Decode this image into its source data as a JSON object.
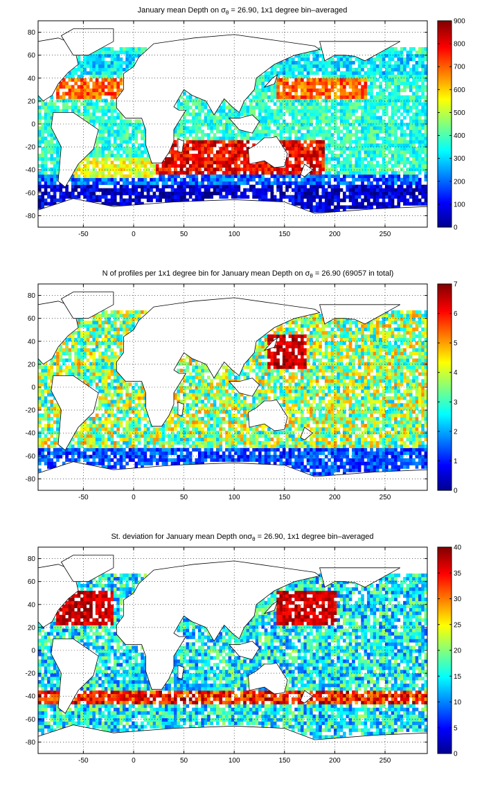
{
  "chart_data": [
    {
      "type": "heatmap",
      "title_main": "January mean Depth on σ",
      "title_sub": "θ",
      "title_rest": " = 26.90, 1x1 degree bin–averaged",
      "xticks": [
        "-50",
        "0",
        "50",
        "100",
        "150",
        "200",
        "250"
      ],
      "xtick_values": [
        -50,
        0,
        50,
        100,
        150,
        200,
        250
      ],
      "yticks": [
        "80",
        "60",
        "40",
        "20",
        "0",
        "-20",
        "-40",
        "-60",
        "-80"
      ],
      "ytick_values": [
        80,
        60,
        40,
        20,
        0,
        -20,
        -40,
        -60,
        -80
      ],
      "xlim": [
        -95,
        292
      ],
      "ylim": [
        -90,
        90
      ],
      "colorbar_ticks": [
        "900",
        "800",
        "700",
        "600",
        "500",
        "400",
        "300",
        "200",
        "100",
        "0"
      ],
      "colorbar_range": [
        0,
        900
      ],
      "colormap": "jet",
      "grid": true
    },
    {
      "type": "heatmap",
      "title_main": "N of profiles per 1x1 degree bin for January mean Depth on σ",
      "title_sub": "θ",
      "title_rest": " = 26.90 (69057 in total)",
      "xticks": [
        "-50",
        "0",
        "50",
        "100",
        "150",
        "200",
        "250"
      ],
      "xtick_values": [
        -50,
        0,
        50,
        100,
        150,
        200,
        250
      ],
      "yticks": [
        "80",
        "60",
        "40",
        "20",
        "0",
        "-20",
        "-40",
        "-60",
        "-80"
      ],
      "ytick_values": [
        80,
        60,
        40,
        20,
        0,
        -20,
        -40,
        -60,
        -80
      ],
      "xlim": [
        -95,
        292
      ],
      "ylim": [
        -90,
        90
      ],
      "colorbar_ticks": [
        "7",
        "6",
        "5",
        "4",
        "3",
        "2",
        "1",
        "0"
      ],
      "colorbar_range": [
        0,
        7
      ],
      "colormap": "jet",
      "grid": true
    },
    {
      "type": "heatmap",
      "title_main": "St. deviation for January mean Depth onσ",
      "title_sub": "θ",
      "title_rest": " = 26.90, 1x1 degree bin–averaged",
      "xticks": [
        "-50",
        "0",
        "50",
        "100",
        "150",
        "200",
        "250"
      ],
      "xtick_values": [
        -50,
        0,
        50,
        100,
        150,
        200,
        250
      ],
      "yticks": [
        "80",
        "60",
        "40",
        "20",
        "0",
        "-20",
        "-40",
        "-60",
        "-80"
      ],
      "ytick_values": [
        80,
        60,
        40,
        20,
        0,
        -20,
        -40,
        -60,
        -80
      ],
      "xlim": [
        -95,
        292
      ],
      "ylim": [
        -90,
        90
      ],
      "colorbar_ticks": [
        "40",
        "35",
        "30",
        "25",
        "20",
        "15",
        "10",
        "5",
        "0"
      ],
      "colorbar_range": [
        0,
        40
      ],
      "colormap": "jet",
      "grid": true
    }
  ],
  "colors": {
    "jet_stops": [
      "#00008f",
      "#0000ff",
      "#00ffff",
      "#ffff00",
      "#ff0000",
      "#800000"
    ],
    "land": "#ffffff",
    "frame": "#000000"
  }
}
